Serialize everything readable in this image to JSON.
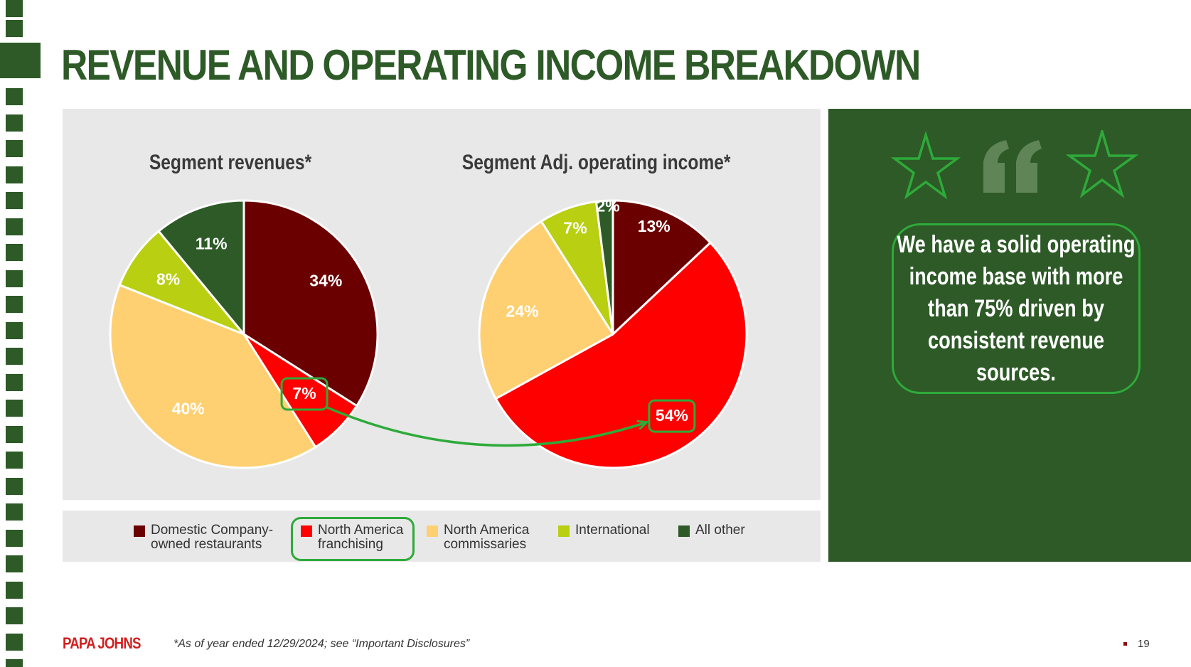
{
  "slide": {
    "title": "REVENUE AND OPERATING INCOME BREAKDOWN",
    "footnote": "*As of year ended 12/29/2024; see “Important Disclosures”",
    "logo_text": "PAPA JOHNS",
    "page_number": "19"
  },
  "colors": {
    "brand_green": "#2d5a27",
    "highlight_green": "#2eaa3a",
    "panel_gray": "#e8e8e8"
  },
  "legend": [
    {
      "label": "Domestic Company-owned restaurants",
      "color": "#6b0000"
    },
    {
      "label": "North America franchising",
      "color": "#ff0000"
    },
    {
      "label": "North America commissaries",
      "color": "#ffd072"
    },
    {
      "label": "International",
      "color": "#b8cf12"
    },
    {
      "label": "All other",
      "color": "#2d5a27"
    }
  ],
  "chart_data": [
    {
      "type": "pie",
      "title": "Segment revenues*",
      "categories": [
        "Domestic Company-owned restaurants",
        "North America franchising",
        "North America commissaries",
        "International",
        "All other"
      ],
      "values": [
        34,
        7,
        40,
        8,
        11
      ],
      "labels": [
        "34%",
        "7%",
        "40%",
        "8%",
        "11%"
      ],
      "colors": [
        "#6b0000",
        "#ff0000",
        "#ffd072",
        "#b8cf12",
        "#2d5a27"
      ],
      "highlighted": "North America franchising"
    },
    {
      "type": "pie",
      "title": "Segment Adj. operating income*",
      "categories": [
        "Domestic Company-owned restaurants",
        "North America franchising",
        "North America commissaries",
        "International",
        "All other"
      ],
      "values": [
        13,
        54,
        24,
        7,
        2
      ],
      "labels": [
        "13%",
        "54%",
        "24%",
        "7%",
        "2%"
      ],
      "colors": [
        "#6b0000",
        "#ff0000",
        "#ffd072",
        "#b8cf12",
        "#2d5a27"
      ],
      "highlighted": "North America franchising"
    }
  ],
  "quote": {
    "text": "We have a solid operating income base with more than 75% driven by consistent revenue sources."
  }
}
